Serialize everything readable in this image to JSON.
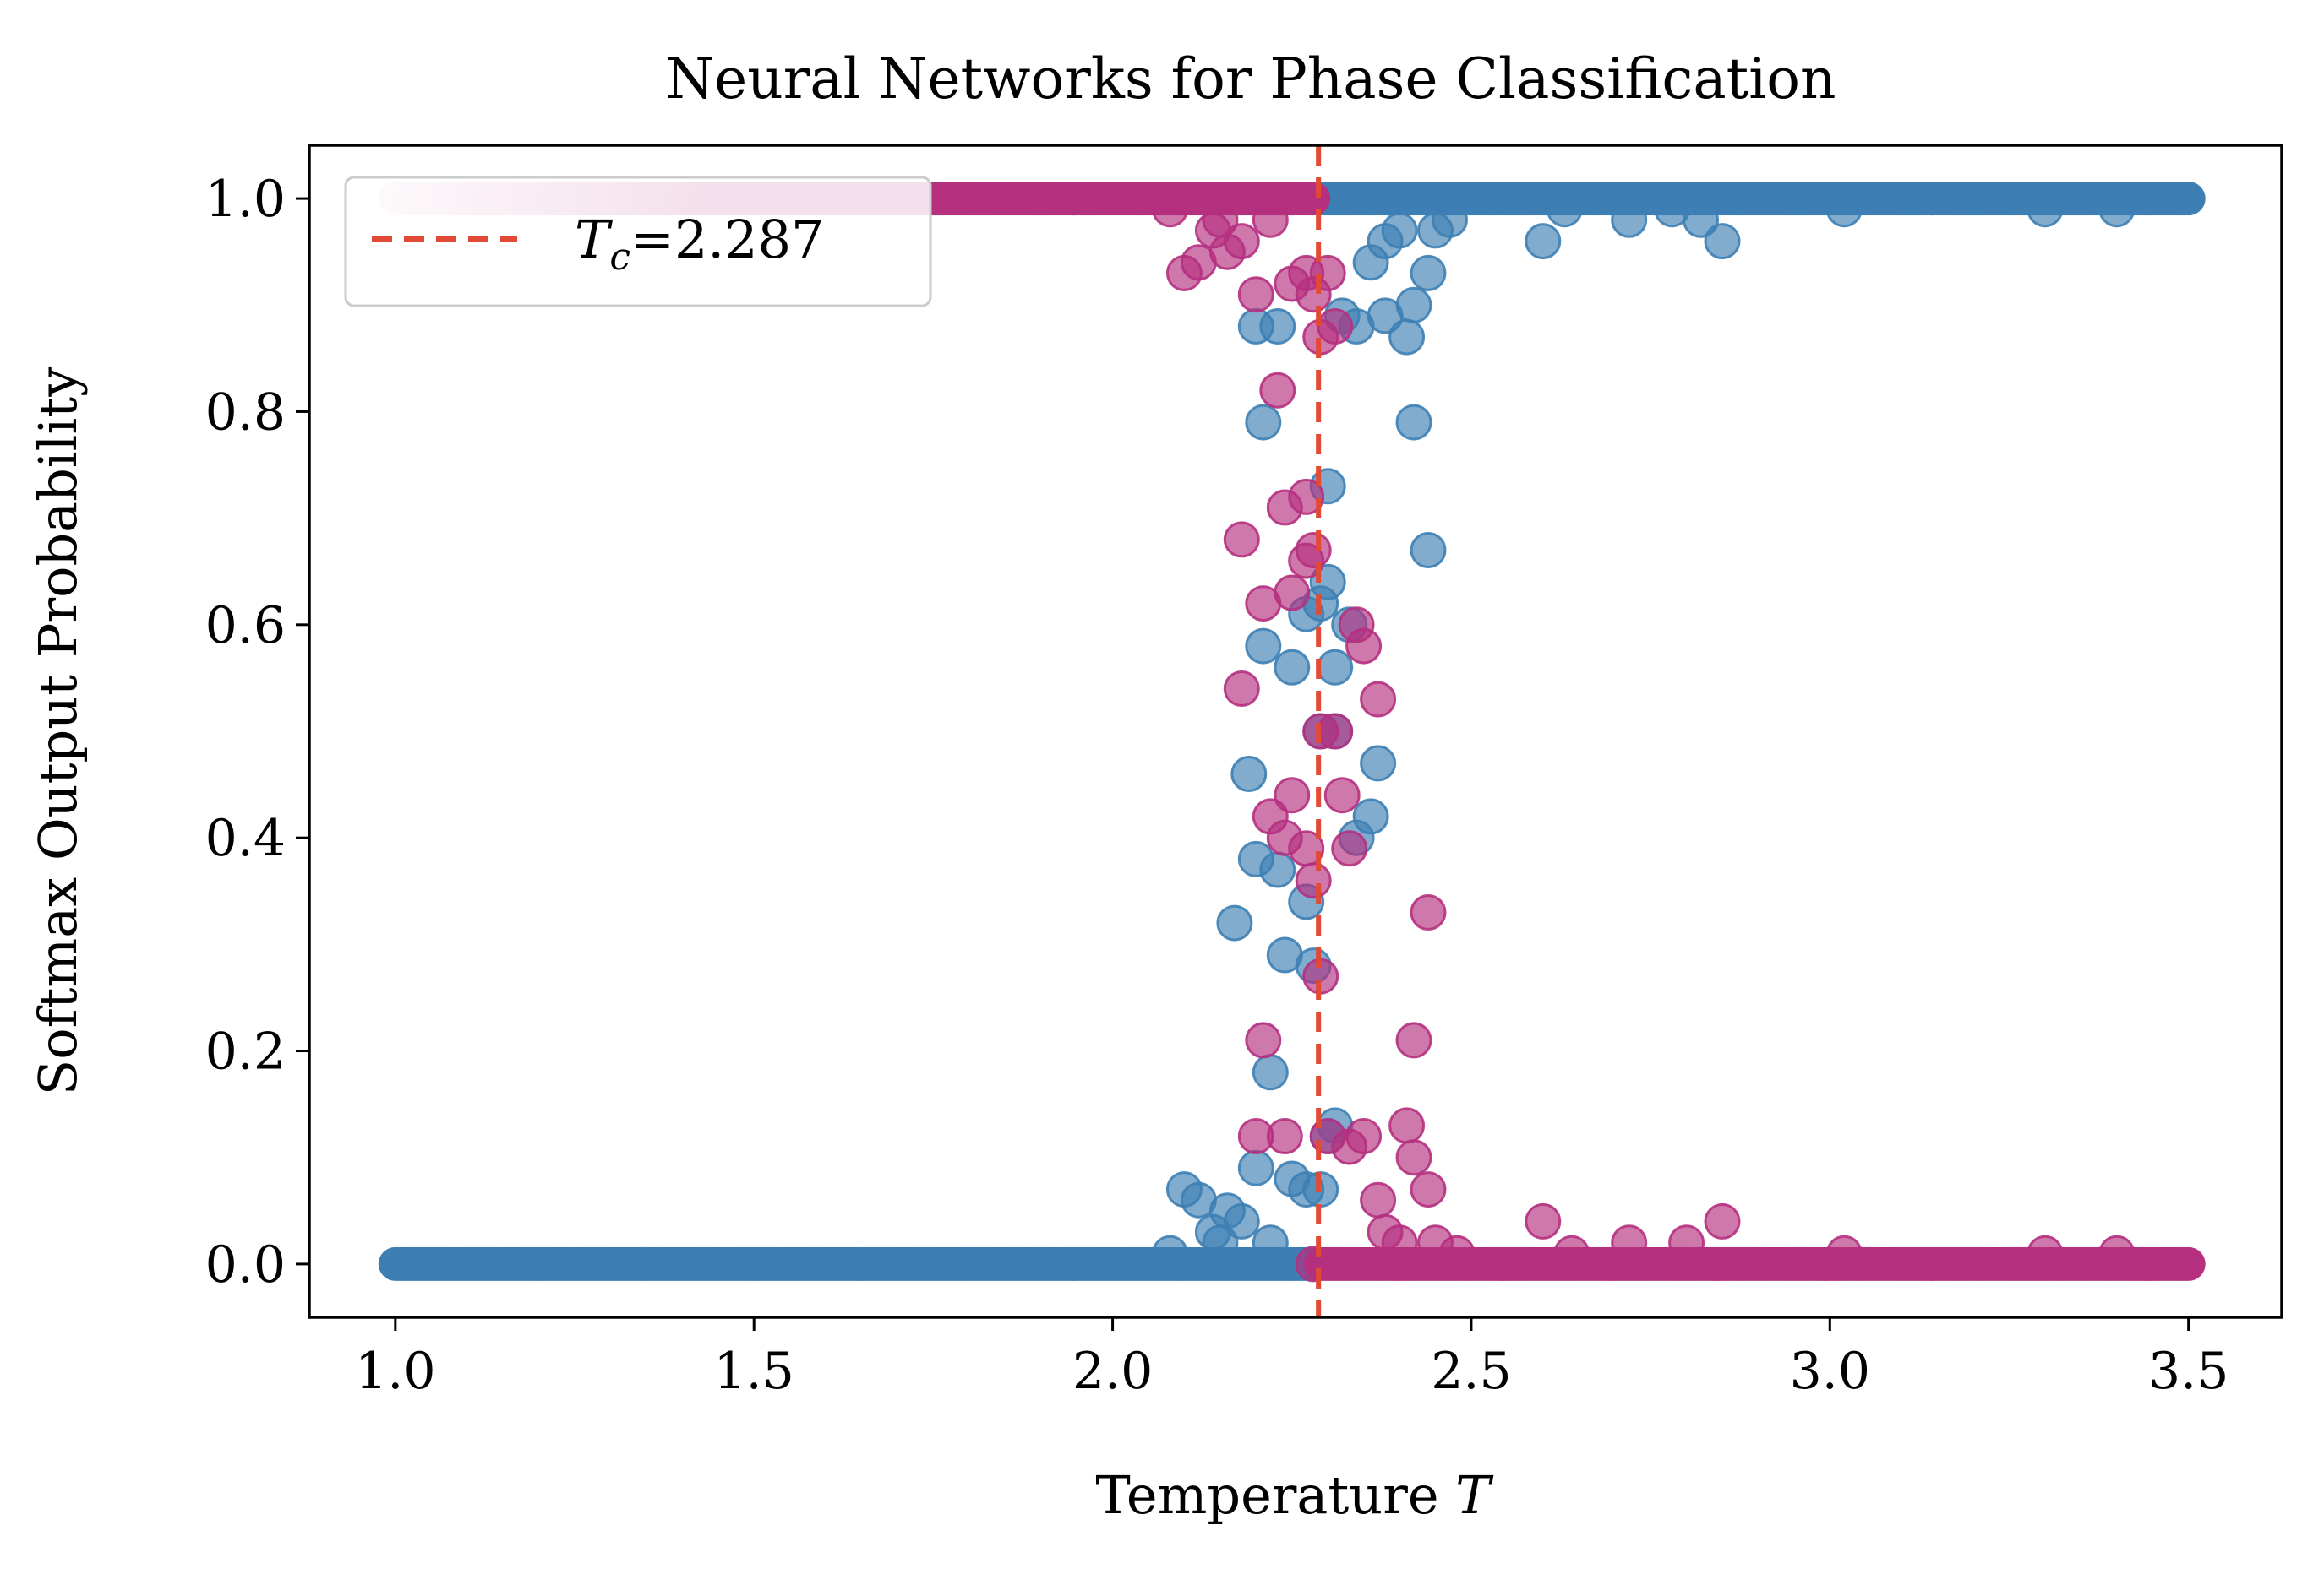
{
  "chart_data": {
    "type": "scatter",
    "title": "Neural Networks for Phase Classification",
    "xlabel_text": "Temperature ",
    "xlabel_var": "T",
    "ylabel": "Softmax Output Probability",
    "xlim": [
      0.88,
      3.63
    ],
    "ylim": [
      -0.05,
      1.05
    ],
    "x_ticks": [
      1.0,
      1.5,
      2.0,
      2.5,
      3.0,
      3.5
    ],
    "x_tick_labels": [
      "1.0",
      "1.5",
      "2.0",
      "2.5",
      "3.0",
      "3.5"
    ],
    "y_ticks": [
      0.0,
      0.2,
      0.4,
      0.6,
      0.8,
      1.0
    ],
    "y_tick_labels": [
      "0.0",
      "0.2",
      "0.4",
      "0.6",
      "0.8",
      "1.0"
    ],
    "grid": false,
    "critical_line": {
      "x": 2.287,
      "color": "#e34a33",
      "style": "dashed"
    },
    "legend": {
      "position": "top-left",
      "entry_var": "T",
      "entry_sub": "c",
      "entry_value": "=2.287"
    },
    "series": [
      {
        "color": "#3d7fb4",
        "alpha": 0.65,
        "dense_segments": [
          {
            "x_range": [
              1.0,
              2.28
            ],
            "y": 0.0
          },
          {
            "x_range": [
              2.29,
              3.5
            ],
            "y": 1.0
          }
        ],
        "points": [
          [
            2.08,
            0.01
          ],
          [
            2.1,
            0.07
          ],
          [
            2.12,
            0.06
          ],
          [
            2.14,
            0.03
          ],
          [
            2.15,
            0.02
          ],
          [
            2.16,
            0.05
          ],
          [
            2.18,
            0.04
          ],
          [
            2.2,
            0.09
          ],
          [
            2.22,
            0.02
          ],
          [
            2.25,
            0.08
          ],
          [
            2.27,
            0.07
          ],
          [
            2.29,
            0.07
          ],
          [
            2.3,
            0.12
          ],
          [
            2.31,
            0.13
          ],
          [
            2.17,
            0.32
          ],
          [
            2.2,
            0.38
          ],
          [
            2.22,
            0.18
          ],
          [
            2.24,
            0.29
          ],
          [
            2.27,
            0.34
          ],
          [
            2.28,
            0.28
          ],
          [
            2.19,
            0.46
          ],
          [
            2.21,
            0.58
          ],
          [
            2.23,
            0.37
          ],
          [
            2.25,
            0.56
          ],
          [
            2.27,
            0.61
          ],
          [
            2.29,
            0.62
          ],
          [
            2.3,
            0.64
          ],
          [
            2.31,
            0.56
          ],
          [
            2.33,
            0.6
          ],
          [
            2.34,
            0.4
          ],
          [
            2.36,
            0.42
          ],
          [
            2.37,
            0.47
          ],
          [
            2.29,
            0.5
          ],
          [
            2.31,
            0.5
          ],
          [
            2.3,
            0.73
          ],
          [
            2.21,
            0.79
          ],
          [
            2.42,
            0.79
          ],
          [
            2.44,
            0.67
          ],
          [
            2.2,
            0.88
          ],
          [
            2.23,
            0.88
          ],
          [
            2.32,
            0.89
          ],
          [
            2.34,
            0.88
          ],
          [
            2.38,
            0.89
          ],
          [
            2.41,
            0.87
          ],
          [
            2.42,
            0.9
          ],
          [
            2.44,
            0.93
          ],
          [
            2.36,
            0.94
          ],
          [
            2.38,
            0.96
          ],
          [
            2.4,
            0.97
          ],
          [
            2.45,
            0.97
          ],
          [
            2.47,
            0.98
          ],
          [
            2.6,
            0.96
          ],
          [
            2.63,
            0.99
          ],
          [
            2.72,
            0.98
          ],
          [
            2.78,
            0.99
          ],
          [
            2.82,
            0.98
          ],
          [
            2.85,
            0.96
          ],
          [
            3.02,
            0.99
          ],
          [
            3.3,
            0.99
          ],
          [
            3.4,
            0.99
          ]
        ]
      },
      {
        "color": "#b5307f",
        "alpha": 0.65,
        "dense_segments": [
          {
            "x_range": [
              1.0,
              2.28
            ],
            "y": 1.0,
            "light_start": true
          },
          {
            "x_range": [
              2.29,
              3.5
            ],
            "y": 0.0
          }
        ],
        "points": [
          [
            2.08,
            0.99
          ],
          [
            2.1,
            0.93
          ],
          [
            2.12,
            0.94
          ],
          [
            2.14,
            0.97
          ],
          [
            2.15,
            0.98
          ],
          [
            2.16,
            0.95
          ],
          [
            2.18,
            0.96
          ],
          [
            2.2,
            0.91
          ],
          [
            2.22,
            0.98
          ],
          [
            2.25,
            0.92
          ],
          [
            2.27,
            0.93
          ],
          [
            2.28,
            0.91
          ],
          [
            2.3,
            0.93
          ],
          [
            2.31,
            0.88
          ],
          [
            2.29,
            0.87
          ],
          [
            2.23,
            0.82
          ],
          [
            2.18,
            0.68
          ],
          [
            2.24,
            0.71
          ],
          [
            2.27,
            0.72
          ],
          [
            2.28,
            0.67
          ],
          [
            2.27,
            0.66
          ],
          [
            2.21,
            0.62
          ],
          [
            2.25,
            0.63
          ],
          [
            2.18,
            0.54
          ],
          [
            2.34,
            0.6
          ],
          [
            2.35,
            0.58
          ],
          [
            2.37,
            0.53
          ],
          [
            2.29,
            0.5
          ],
          [
            2.31,
            0.5
          ],
          [
            2.25,
            0.44
          ],
          [
            2.22,
            0.42
          ],
          [
            2.24,
            0.4
          ],
          [
            2.27,
            0.39
          ],
          [
            2.28,
            0.36
          ],
          [
            2.32,
            0.44
          ],
          [
            2.33,
            0.39
          ],
          [
            2.29,
            0.27
          ],
          [
            2.21,
            0.21
          ],
          [
            2.44,
            0.33
          ],
          [
            2.42,
            0.21
          ],
          [
            2.2,
            0.12
          ],
          [
            2.24,
            0.12
          ],
          [
            2.3,
            0.12
          ],
          [
            2.33,
            0.11
          ],
          [
            2.35,
            0.12
          ],
          [
            2.41,
            0.13
          ],
          [
            2.42,
            0.1
          ],
          [
            2.44,
            0.07
          ],
          [
            2.37,
            0.06
          ],
          [
            2.38,
            0.03
          ],
          [
            2.4,
            0.02
          ],
          [
            2.45,
            0.02
          ],
          [
            2.48,
            0.01
          ],
          [
            2.6,
            0.04
          ],
          [
            2.64,
            0.01
          ],
          [
            2.72,
            0.02
          ],
          [
            2.8,
            0.02
          ],
          [
            2.85,
            0.04
          ],
          [
            3.02,
            0.01
          ],
          [
            3.3,
            0.01
          ],
          [
            3.4,
            0.01
          ],
          [
            2.28,
            0.0
          ]
        ]
      }
    ]
  }
}
